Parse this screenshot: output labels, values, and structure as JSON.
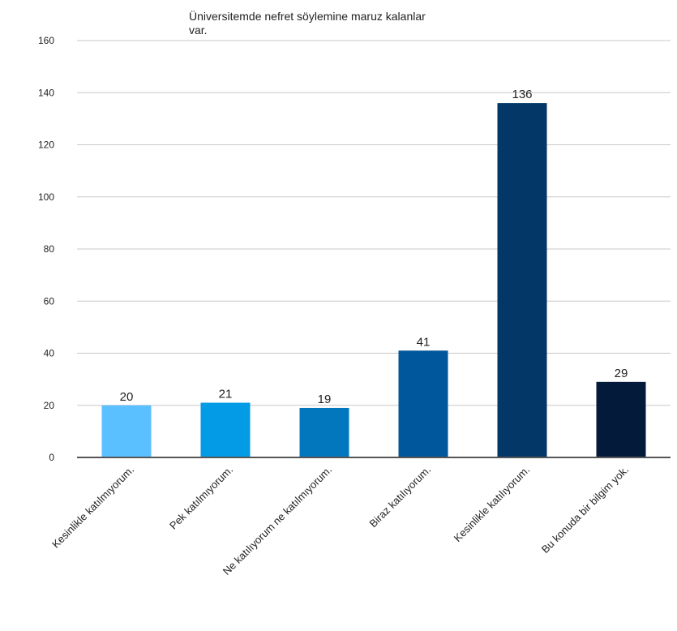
{
  "chart_data": {
    "type": "bar",
    "title_lines": [
      "Üniversitemde nefret söylemine maruz kalanlar",
      "var."
    ],
    "categories": [
      "Kesinlikle katılmıyorum.",
      "Pek katılmıyorum.",
      "Ne katılıyorum ne katılmıyorum.",
      "Biraz katılıyorum.",
      "Kesinlikle katılıyorum.",
      "Bu konuda bir bilgim yok."
    ],
    "values": [
      20,
      21,
      19,
      41,
      136,
      29
    ],
    "colors": [
      "#5bc0ff",
      "#039be5",
      "#0277bd",
      "#01579b",
      "#023767",
      "#031a3a"
    ],
    "ylim": [
      0,
      160
    ],
    "yticks": [
      "0",
      "20",
      "40",
      "60",
      "80",
      "100",
      "120",
      "140",
      "160"
    ],
    "grid": true,
    "legend": "none",
    "xlabel": "",
    "ylabel": ""
  }
}
